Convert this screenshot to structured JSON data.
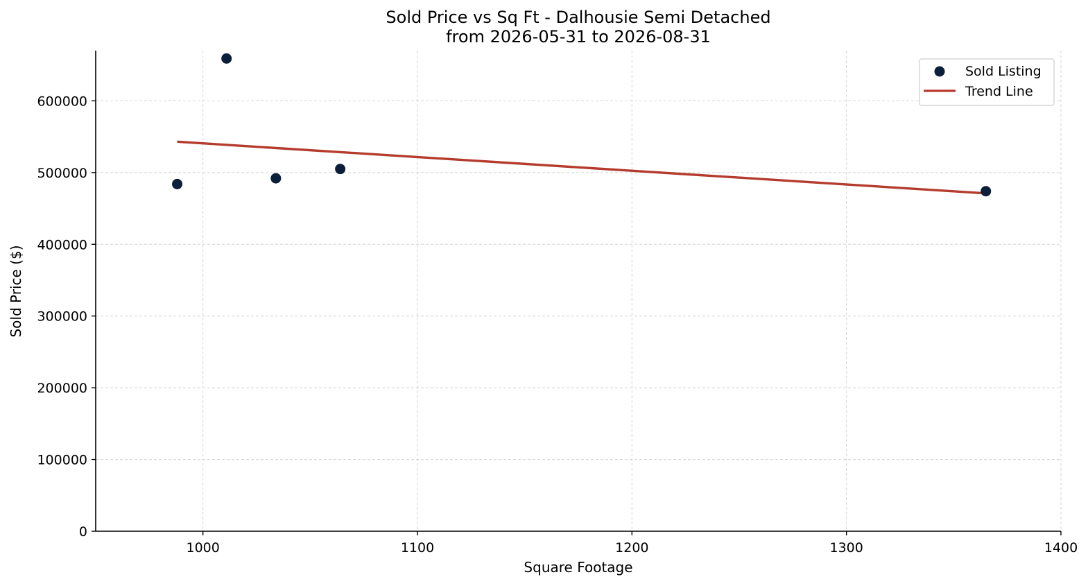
{
  "chart_data": {
    "type": "scatter",
    "title": "Sold Price vs Sq Ft - Dalhousie Semi Detached",
    "subtitle": "from 2026-05-31 to 2026-08-31",
    "xlabel": "Square Footage",
    "ylabel": "Sold Price ($)",
    "xlim": [
      950,
      1400
    ],
    "ylim": [
      0,
      670000
    ],
    "xticks": [
      1000,
      1100,
      1200,
      1300,
      1400
    ],
    "yticks": [
      0,
      100000,
      200000,
      300000,
      400000,
      500000,
      600000
    ],
    "grid": true,
    "legend_position": "top-right",
    "series": [
      {
        "name": "Sold Listing",
        "kind": "points",
        "color": "#0b1f3a",
        "x": [
          988,
          1011,
          1034,
          1064,
          1365
        ],
        "y": [
          484000,
          659000,
          492000,
          505000,
          474000
        ]
      },
      {
        "name": "Trend Line",
        "kind": "line",
        "color": "#b53b2d",
        "x": [
          988,
          1365
        ],
        "y": [
          543000,
          471000
        ]
      }
    ]
  }
}
